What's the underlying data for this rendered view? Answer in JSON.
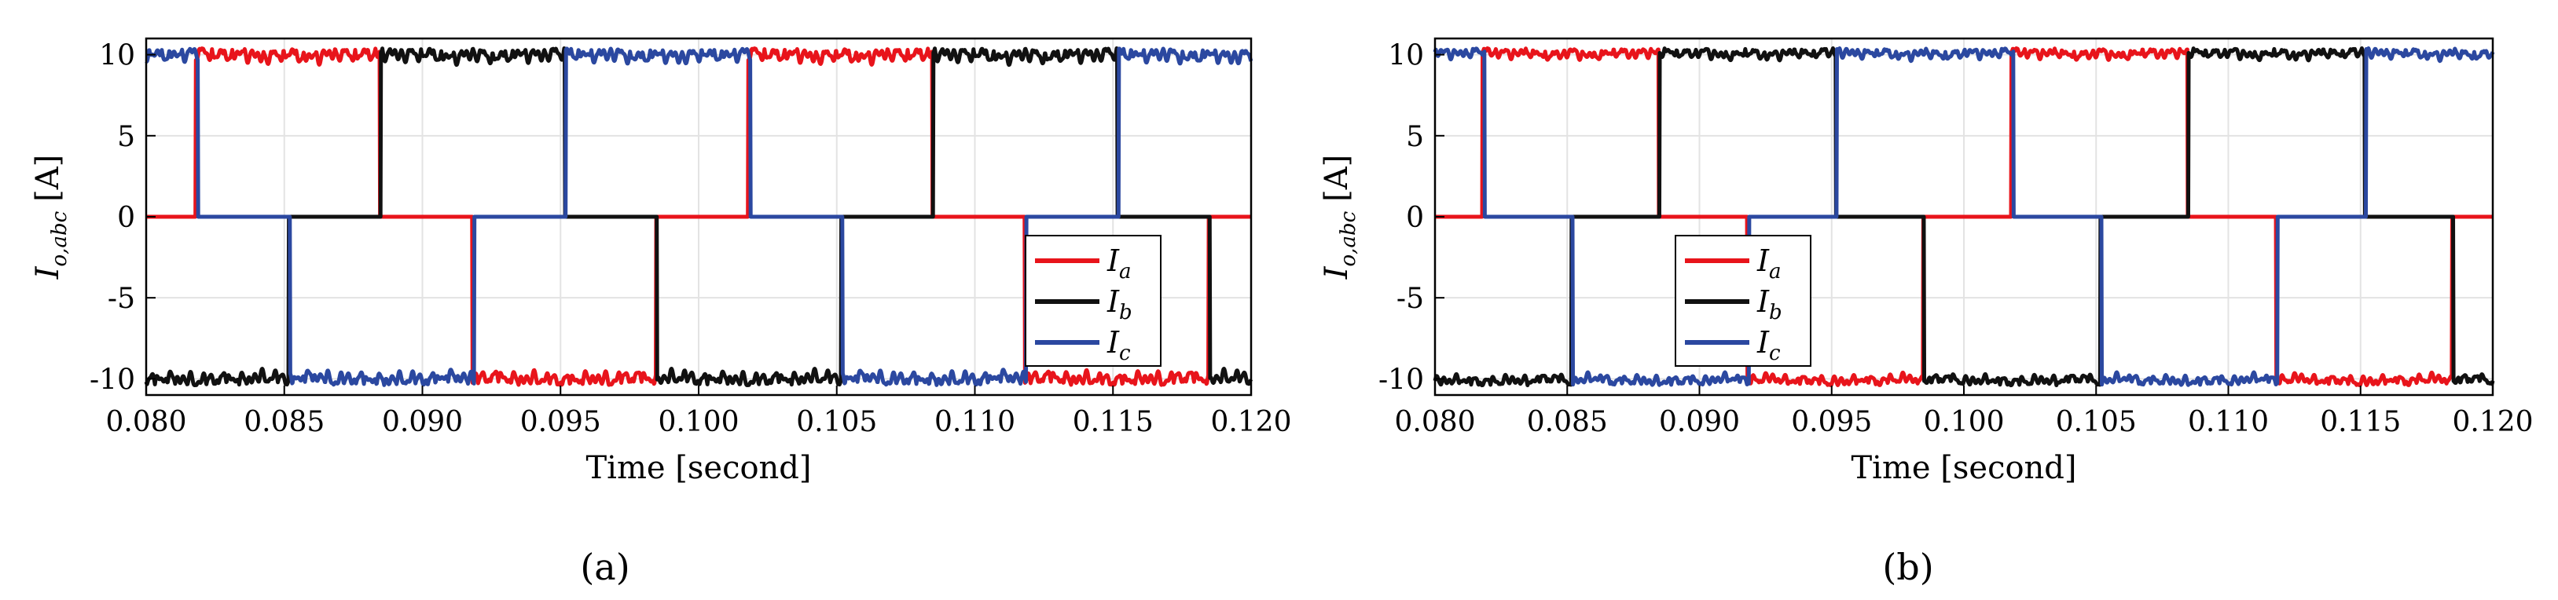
{
  "chart_data": [
    {
      "type": "line",
      "panel": "a",
      "caption": "(a)",
      "xlabel": "Time [second]",
      "ylabel_main": "I",
      "ylabel_sub": "o,abc",
      "ylabel_unit": "[A]",
      "xlim": [
        0.08,
        0.12
      ],
      "ylim": [
        -11,
        11
      ],
      "xticks": [
        0.08,
        0.085,
        0.09,
        0.095,
        0.1,
        0.105,
        0.11,
        0.115,
        0.12
      ],
      "xtick_labels": [
        "0.080",
        "0.085",
        "0.090",
        "0.095",
        "0.100",
        "0.105",
        "0.110",
        "0.115",
        "0.120"
      ],
      "yticks": [
        -10,
        -5,
        0,
        5,
        10
      ],
      "ytick_labels": [
        "-10",
        "-5",
        "0",
        "5",
        "10"
      ],
      "grid": true,
      "legend_position": "right-middle",
      "period": 0.02,
      "amplitude": 10.4,
      "ripple": 0.85,
      "series": [
        {
          "name": "a",
          "color": "#e8141b",
          "phase_start": 0.0818
        },
        {
          "name": "b",
          "color": "#111111",
          "phase_start": 0.0885
        },
        {
          "name": "c",
          "color": "#2b48a0",
          "phase_start": 0.0952
        }
      ],
      "legend": [
        {
          "main": "I",
          "sub": "a"
        },
        {
          "main": "I",
          "sub": "b"
        },
        {
          "main": "I",
          "sub": "c"
        }
      ]
    },
    {
      "type": "line",
      "panel": "b",
      "caption": "(b)",
      "xlabel": "Time [second]",
      "ylabel_main": "I",
      "ylabel_sub": "o,abc",
      "ylabel_unit": "[A]",
      "xlim": [
        0.08,
        0.12
      ],
      "ylim": [
        -11,
        11
      ],
      "xticks": [
        0.08,
        0.085,
        0.09,
        0.095,
        0.1,
        0.105,
        0.11,
        0.115,
        0.12
      ],
      "xtick_labels": [
        "0.080",
        "0.085",
        "0.090",
        "0.095",
        "0.100",
        "0.105",
        "0.110",
        "0.115",
        "0.120"
      ],
      "yticks": [
        -10,
        -5,
        0,
        5,
        10
      ],
      "ytick_labels": [
        "-10",
        "-5",
        "0",
        "5",
        "10"
      ],
      "grid": true,
      "legend_position": "left-middle",
      "period": 0.02,
      "amplitude": 10.4,
      "ripple": 0.6,
      "series": [
        {
          "name": "a",
          "color": "#e8141b",
          "phase_start": 0.0818
        },
        {
          "name": "b",
          "color": "#111111",
          "phase_start": 0.0885
        },
        {
          "name": "c",
          "color": "#2b48a0",
          "phase_start": 0.0952
        }
      ],
      "legend": [
        {
          "main": "I",
          "sub": "a"
        },
        {
          "main": "I",
          "sub": "b"
        },
        {
          "main": "I",
          "sub": "c"
        }
      ]
    }
  ]
}
